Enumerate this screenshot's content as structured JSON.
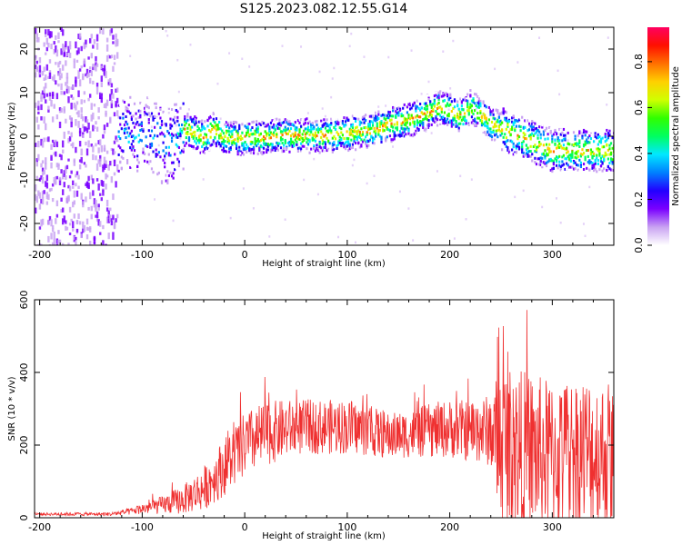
{
  "title": "S125.2023.082.12.55.G14",
  "chart_data": [
    {
      "type": "heatmap",
      "title": "S125.2023.082.12.55.G14",
      "xlabel": "Height of straight line (km)",
      "ylabel": "Frequency (Hz)",
      "xlim": [
        -205,
        360
      ],
      "ylim": [
        -25,
        25
      ],
      "xticks": [
        "-200",
        "-100",
        "0",
        "100",
        "200",
        "300"
      ],
      "xtick_values": [
        -200,
        -100,
        0,
        100,
        200,
        300
      ],
      "yticks": [
        "-20",
        "-10",
        "0",
        "10",
        "20"
      ],
      "ytick_values": [
        -20,
        -10,
        0,
        10,
        20
      ],
      "colorbar": {
        "label": "Normalized spectral amplitude",
        "range": [
          0,
          0.95
        ],
        "ticks": [
          "0.0",
          "0.2",
          "0.4",
          "0.6",
          "0.8"
        ],
        "tick_values": [
          0.0,
          0.2,
          0.4,
          0.6,
          0.8
        ],
        "colors": [
          "#ffffff",
          "#c9a3f2",
          "#7a00ff",
          "#2200ff",
          "#0080ff",
          "#00e8ff",
          "#00ff60",
          "#30ff00",
          "#d0ff00",
          "#ffd000",
          "#ff7000",
          "#ff1000",
          "#ff0060"
        ]
      },
      "ridge_x": [
        -200,
        -150,
        -120,
        -100,
        -90,
        -80,
        -70,
        -60,
        -50,
        -40,
        -30,
        -20,
        -10,
        0,
        20,
        40,
        60,
        80,
        100,
        120,
        140,
        160,
        180,
        190,
        200,
        210,
        220,
        230,
        240,
        260,
        280,
        300,
        320,
        340,
        360
      ],
      "ridge_y": [
        0,
        0,
        0.5,
        1,
        0,
        -2,
        -1,
        2,
        1,
        0,
        2,
        0,
        0,
        0,
        0,
        0.5,
        0.5,
        0.5,
        1,
        1.5,
        3,
        4,
        6,
        7,
        6,
        5,
        7,
        5,
        3,
        1,
        -1,
        -3,
        -3,
        -3,
        -3
      ]
    },
    {
      "type": "line",
      "xlabel": "Height of straight line (km)",
      "ylabel": "SNR (10 * v/v)",
      "xlim": [
        -205,
        360
      ],
      "ylim": [
        0,
        600
      ],
      "xticks": [
        "-200",
        "-100",
        "0",
        "100",
        "200",
        "300"
      ],
      "xtick_values": [
        -200,
        -100,
        0,
        100,
        200,
        300
      ],
      "yticks": [
        "0",
        "200",
        "400",
        "600"
      ],
      "ytick_values": [
        0,
        200,
        400,
        600
      ],
      "color": "#ef3030",
      "envelope_x": [
        -205,
        -130,
        -110,
        -100,
        -80,
        -60,
        -40,
        -20,
        0,
        20,
        40,
        60,
        80,
        100,
        120,
        140,
        160,
        180,
        200,
        220,
        240,
        250,
        270,
        300,
        330,
        360
      ],
      "envelope_mean": [
        10,
        10,
        18,
        25,
        35,
        50,
        80,
        140,
        200,
        230,
        245,
        250,
        250,
        250,
        240,
        225,
        230,
        240,
        245,
        240,
        240,
        200,
        180,
        170,
        180,
        170
      ],
      "envelope_spread": [
        4,
        5,
        10,
        15,
        25,
        40,
        60,
        80,
        90,
        90,
        80,
        75,
        75,
        75,
        70,
        65,
        65,
        75,
        80,
        85,
        100,
        230,
        230,
        210,
        220,
        210
      ]
    }
  ]
}
